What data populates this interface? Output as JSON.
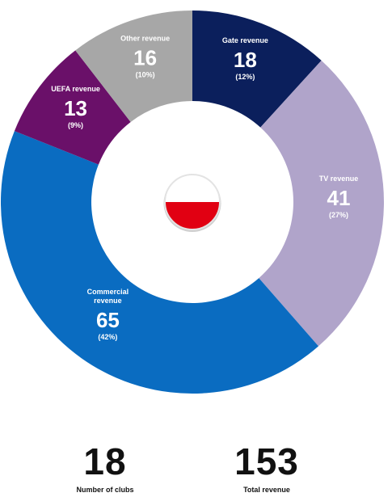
{
  "chart_data": {
    "type": "donut",
    "title": "",
    "unit": "",
    "segments": [
      {
        "name": "Gate revenue",
        "value": 18,
        "percent": "(12%)",
        "color": "#0b1f5c"
      },
      {
        "name": "TV revenue",
        "value": 41,
        "percent": "(27%)",
        "color": "#b0a4ca"
      },
      {
        "name": "Commercial revenue",
        "value": 65,
        "percent": "(42%)",
        "color": "#0a6cc1"
      },
      {
        "name": "UEFA revenue",
        "value": 13,
        "percent": "(9%)",
        "color": "#6a1069"
      },
      {
        "name": "Other revenue",
        "value": 16,
        "percent": "(10%)",
        "color": "#a7a7a7"
      }
    ],
    "center_flag": {
      "name": "flag-poland",
      "top_color": "#ffffff",
      "bottom_color": "#e10012"
    }
  },
  "stats": {
    "clubs": {
      "value": "18",
      "label": "Number of clubs"
    },
    "revenue": {
      "value": "153",
      "label": "Total revenue"
    }
  }
}
